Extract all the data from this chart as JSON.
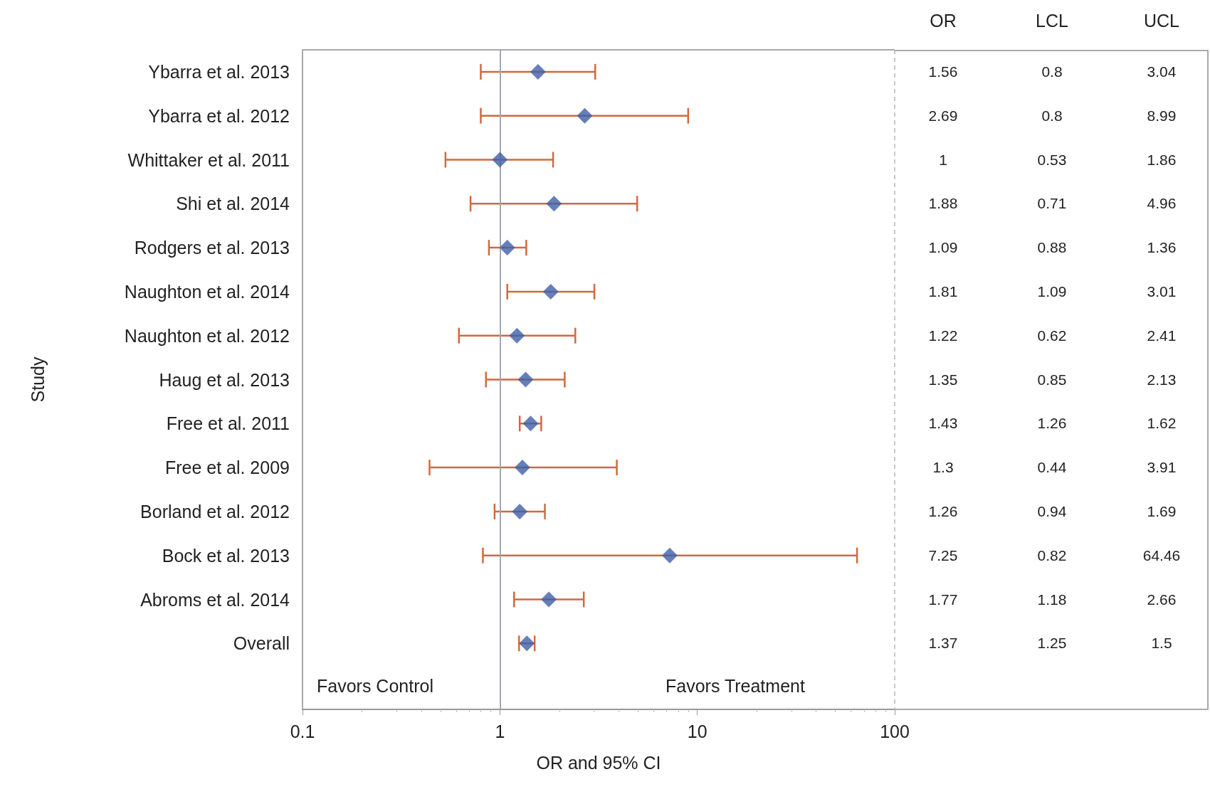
{
  "chart_data": [
    {
      "type": "scatter",
      "orientation": "horizontal",
      "xlabel": "OR and 95% CI",
      "ylabel": "Study",
      "categories": [
        "Ybarra et al. 2013",
        "Ybarra et al. 2012",
        "Whittaker et al. 2011",
        "Shi et al. 2014",
        "Rodgers et al. 2013",
        "Naughton et al. 2014",
        "Naughton et al. 2012",
        "Haug et al. 2013",
        "Free et al. 2011",
        "Free et al. 2009",
        "Borland et al. 2012",
        "Bock et al. 2013",
        "Abroms et al. 2014",
        "Overall"
      ],
      "values": [
        1.56,
        2.69,
        1,
        1.88,
        1.09,
        1.81,
        1.22,
        1.35,
        1.43,
        1.3,
        1.26,
        7.25,
        1.77,
        1.37
      ],
      "errors": [
        [
          0.8,
          3.04
        ],
        [
          0.8,
          8.99
        ],
        [
          0.53,
          1.86
        ],
        [
          0.71,
          4.96
        ],
        [
          0.88,
          1.36
        ],
        [
          1.09,
          3.01
        ],
        [
          0.62,
          2.41
        ],
        [
          0.85,
          2.13
        ],
        [
          1.26,
          1.62
        ],
        [
          0.44,
          3.91
        ],
        [
          0.94,
          1.69
        ],
        [
          0.82,
          64.46
        ],
        [
          1.18,
          2.66
        ],
        [
          1.25,
          1.5
        ]
      ],
      "color": "#3d5fa8",
      "marker": "diamond",
      "log": "x",
      "xlim": [
        0.1,
        100
      ],
      "xticks": [
        0.1,
        1,
        10,
        100
      ],
      "grid": false,
      "legend": false,
      "ref_lines": [
        {
          "axis": "x",
          "value": 1,
          "color": "#a0a8b4",
          "line_style": "solid"
        },
        {
          "axis": "x",
          "value": 100,
          "color": "#c8c8c8",
          "line_style": "dashed"
        }
      ],
      "annotations": [
        "Favors Control",
        "Favors Treatment"
      ]
    },
    {
      "type": "other",
      "annotations": [
        "OR",
        "LCL",
        "UCL",
        "1.56",
        "0.8",
        "3.04",
        "2.69",
        "0.8",
        "8.99",
        "1",
        "0.53",
        "1.86",
        "1.88",
        "0.71",
        "4.96",
        "1.09",
        "0.88",
        "1.36",
        "1.81",
        "1.09",
        "3.01",
        "1.22",
        "0.62",
        "2.41",
        "1.35",
        "0.85",
        "2.13",
        "1.43",
        "1.26",
        "1.62",
        "1.3",
        "0.44",
        "3.91",
        "1.26",
        "0.94",
        "1.69",
        "7.25",
        "0.82",
        "64.46",
        "1.77",
        "1.18",
        "2.66",
        "1.37",
        "1.25",
        "1.5"
      ]
    }
  ]
}
